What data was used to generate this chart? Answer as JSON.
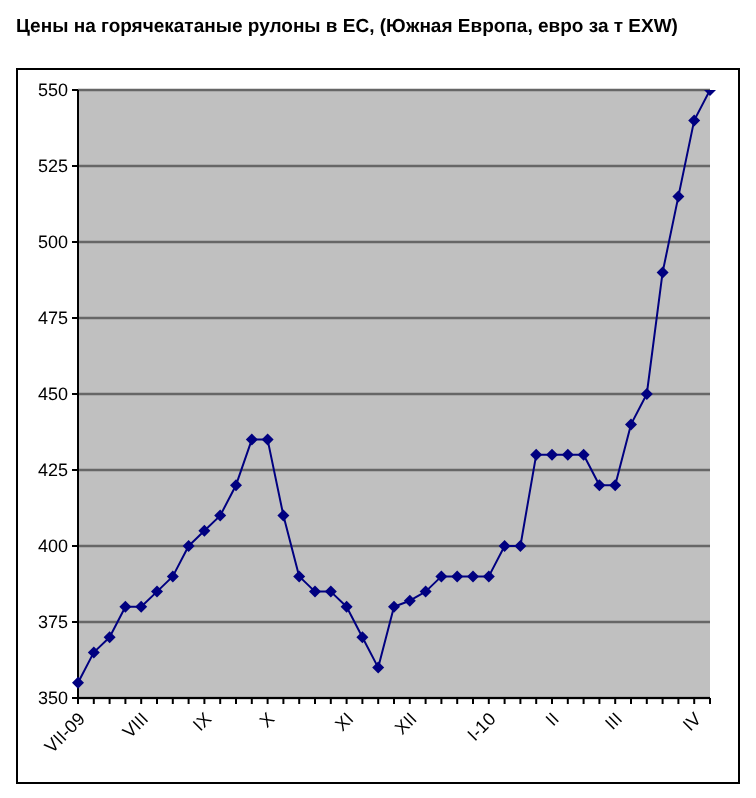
{
  "chart_data": {
    "type": "line",
    "title": "Цены на горячекатаные рулоны в ЕС, (Южная Европа, евро за т EXW)",
    "categories": [
      "VII-09",
      null,
      null,
      null,
      "VIII",
      null,
      null,
      null,
      "IX",
      null,
      null,
      null,
      "X",
      null,
      null,
      null,
      null,
      "XI",
      null,
      null,
      null,
      "XII",
      null,
      null,
      null,
      null,
      "I-10",
      null,
      null,
      null,
      "II",
      null,
      null,
      null,
      "III",
      null,
      null,
      null,
      null,
      "IV",
      null
    ],
    "series": [
      {
        "color": "#000080",
        "values": [
          355,
          365,
          370,
          380,
          380,
          385,
          390,
          400,
          405,
          410,
          420,
          435,
          435,
          410,
          390,
          385,
          385,
          380,
          370,
          360,
          380,
          382,
          385,
          390,
          390,
          390,
          390,
          400,
          400,
          430,
          430,
          430,
          430,
          420,
          420,
          440,
          450,
          490,
          515,
          540,
          550
        ]
      }
    ],
    "ylim": [
      350,
      550
    ],
    "yticks": [
      350,
      375,
      400,
      425,
      450,
      475,
      500,
      525,
      550
    ],
    "grid": "y",
    "marker": "diamond",
    "line_style": "solid",
    "legend": false
  }
}
